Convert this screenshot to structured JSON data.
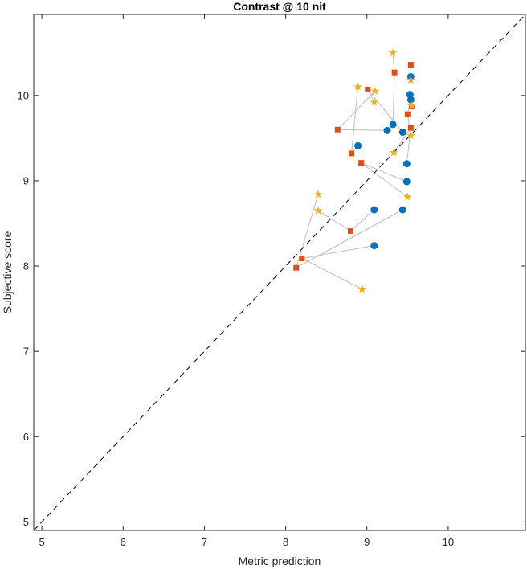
{
  "chart_data": {
    "type": "scatter",
    "title": "Contrast @ 10 nit",
    "xlabel": "Metric prediction",
    "ylabel": "Subjective score",
    "xlim": [
      4.9,
      10.95
    ],
    "ylim": [
      4.9,
      10.95
    ],
    "xticks": [
      5,
      6,
      7,
      8,
      9,
      10
    ],
    "yticks": [
      5,
      6,
      7,
      8,
      9,
      10
    ],
    "grid": false,
    "reference_line": {
      "style": "dashed",
      "color": "#000000",
      "from": [
        4.9,
        4.9
      ],
      "to": [
        10.95,
        10.95
      ]
    },
    "connector_color": "#bdbdbd",
    "series": [
      {
        "marker": "circle",
        "color": "#0072bd",
        "points": [
          [
            9.54,
            10.22
          ],
          [
            9.53,
            10.01
          ],
          [
            9.54,
            9.95
          ],
          [
            9.32,
            9.66
          ],
          [
            9.25,
            9.59
          ],
          [
            9.44,
            9.57
          ],
          [
            8.89,
            9.41
          ],
          [
            9.49,
            9.2
          ],
          [
            9.49,
            8.99
          ],
          [
            9.09,
            8.66
          ],
          [
            9.44,
            8.66
          ],
          [
            9.09,
            8.24
          ]
        ]
      },
      {
        "marker": "square",
        "color": "#d95319",
        "points": [
          [
            9.54,
            10.36
          ],
          [
            9.34,
            10.27
          ],
          [
            9.01,
            10.07
          ],
          [
            9.55,
            9.87
          ],
          [
            9.5,
            9.78
          ],
          [
            9.54,
            9.62
          ],
          [
            8.64,
            9.6
          ],
          [
            8.81,
            9.32
          ],
          [
            8.93,
            9.21
          ],
          [
            8.8,
            8.41
          ],
          [
            8.2,
            8.09
          ],
          [
            8.13,
            7.98
          ]
        ]
      },
      {
        "marker": "star",
        "color": "#edb120",
        "points": [
          [
            9.32,
            10.5
          ],
          [
            9.54,
            10.18
          ],
          [
            8.89,
            10.1
          ],
          [
            9.1,
            10.05
          ],
          [
            9.09,
            9.92
          ],
          [
            9.55,
            9.88
          ],
          [
            9.54,
            9.53
          ],
          [
            9.33,
            9.33
          ],
          [
            8.4,
            8.84
          ],
          [
            9.5,
            8.81
          ],
          [
            8.4,
            8.65
          ],
          [
            8.94,
            7.73
          ]
        ]
      }
    ],
    "connections": [
      [
        [
          9.54,
          10.22
        ],
        [
          9.54,
          10.36
        ],
        [
          9.54,
          10.18
        ]
      ],
      [
        [
          9.53,
          10.01
        ],
        [
          9.55,
          9.87
        ],
        [
          9.55,
          9.88
        ]
      ],
      [
        [
          9.54,
          9.95
        ],
        [
          9.5,
          9.78
        ],
        [
          9.54,
          9.53
        ]
      ],
      [
        [
          9.32,
          9.66
        ],
        [
          9.34,
          10.27
        ],
        [
          9.32,
          10.5
        ]
      ],
      [
        [
          9.25,
          9.59
        ],
        [
          8.64,
          9.6
        ],
        [
          9.1,
          10.05
        ]
      ],
      [
        [
          9.44,
          9.57
        ],
        [
          9.01,
          10.07
        ],
        [
          9.09,
          9.92
        ]
      ],
      [
        [
          8.89,
          9.41
        ],
        [
          8.81,
          9.32
        ],
        [
          8.89,
          10.1
        ]
      ],
      [
        [
          9.49,
          9.2
        ],
        [
          9.54,
          9.62
        ],
        [
          9.33,
          9.33
        ]
      ],
      [
        [
          9.49,
          8.99
        ],
        [
          8.93,
          9.21
        ],
        [
          9.5,
          8.81
        ]
      ],
      [
        [
          9.09,
          8.66
        ],
        [
          8.8,
          8.41
        ],
        [
          8.4,
          8.65
        ]
      ],
      [
        [
          9.44,
          8.66
        ],
        [
          8.13,
          7.98
        ],
        [
          8.4,
          8.84
        ]
      ],
      [
        [
          9.09,
          8.24
        ],
        [
          8.2,
          8.09
        ],
        [
          8.94,
          7.73
        ]
      ]
    ]
  }
}
